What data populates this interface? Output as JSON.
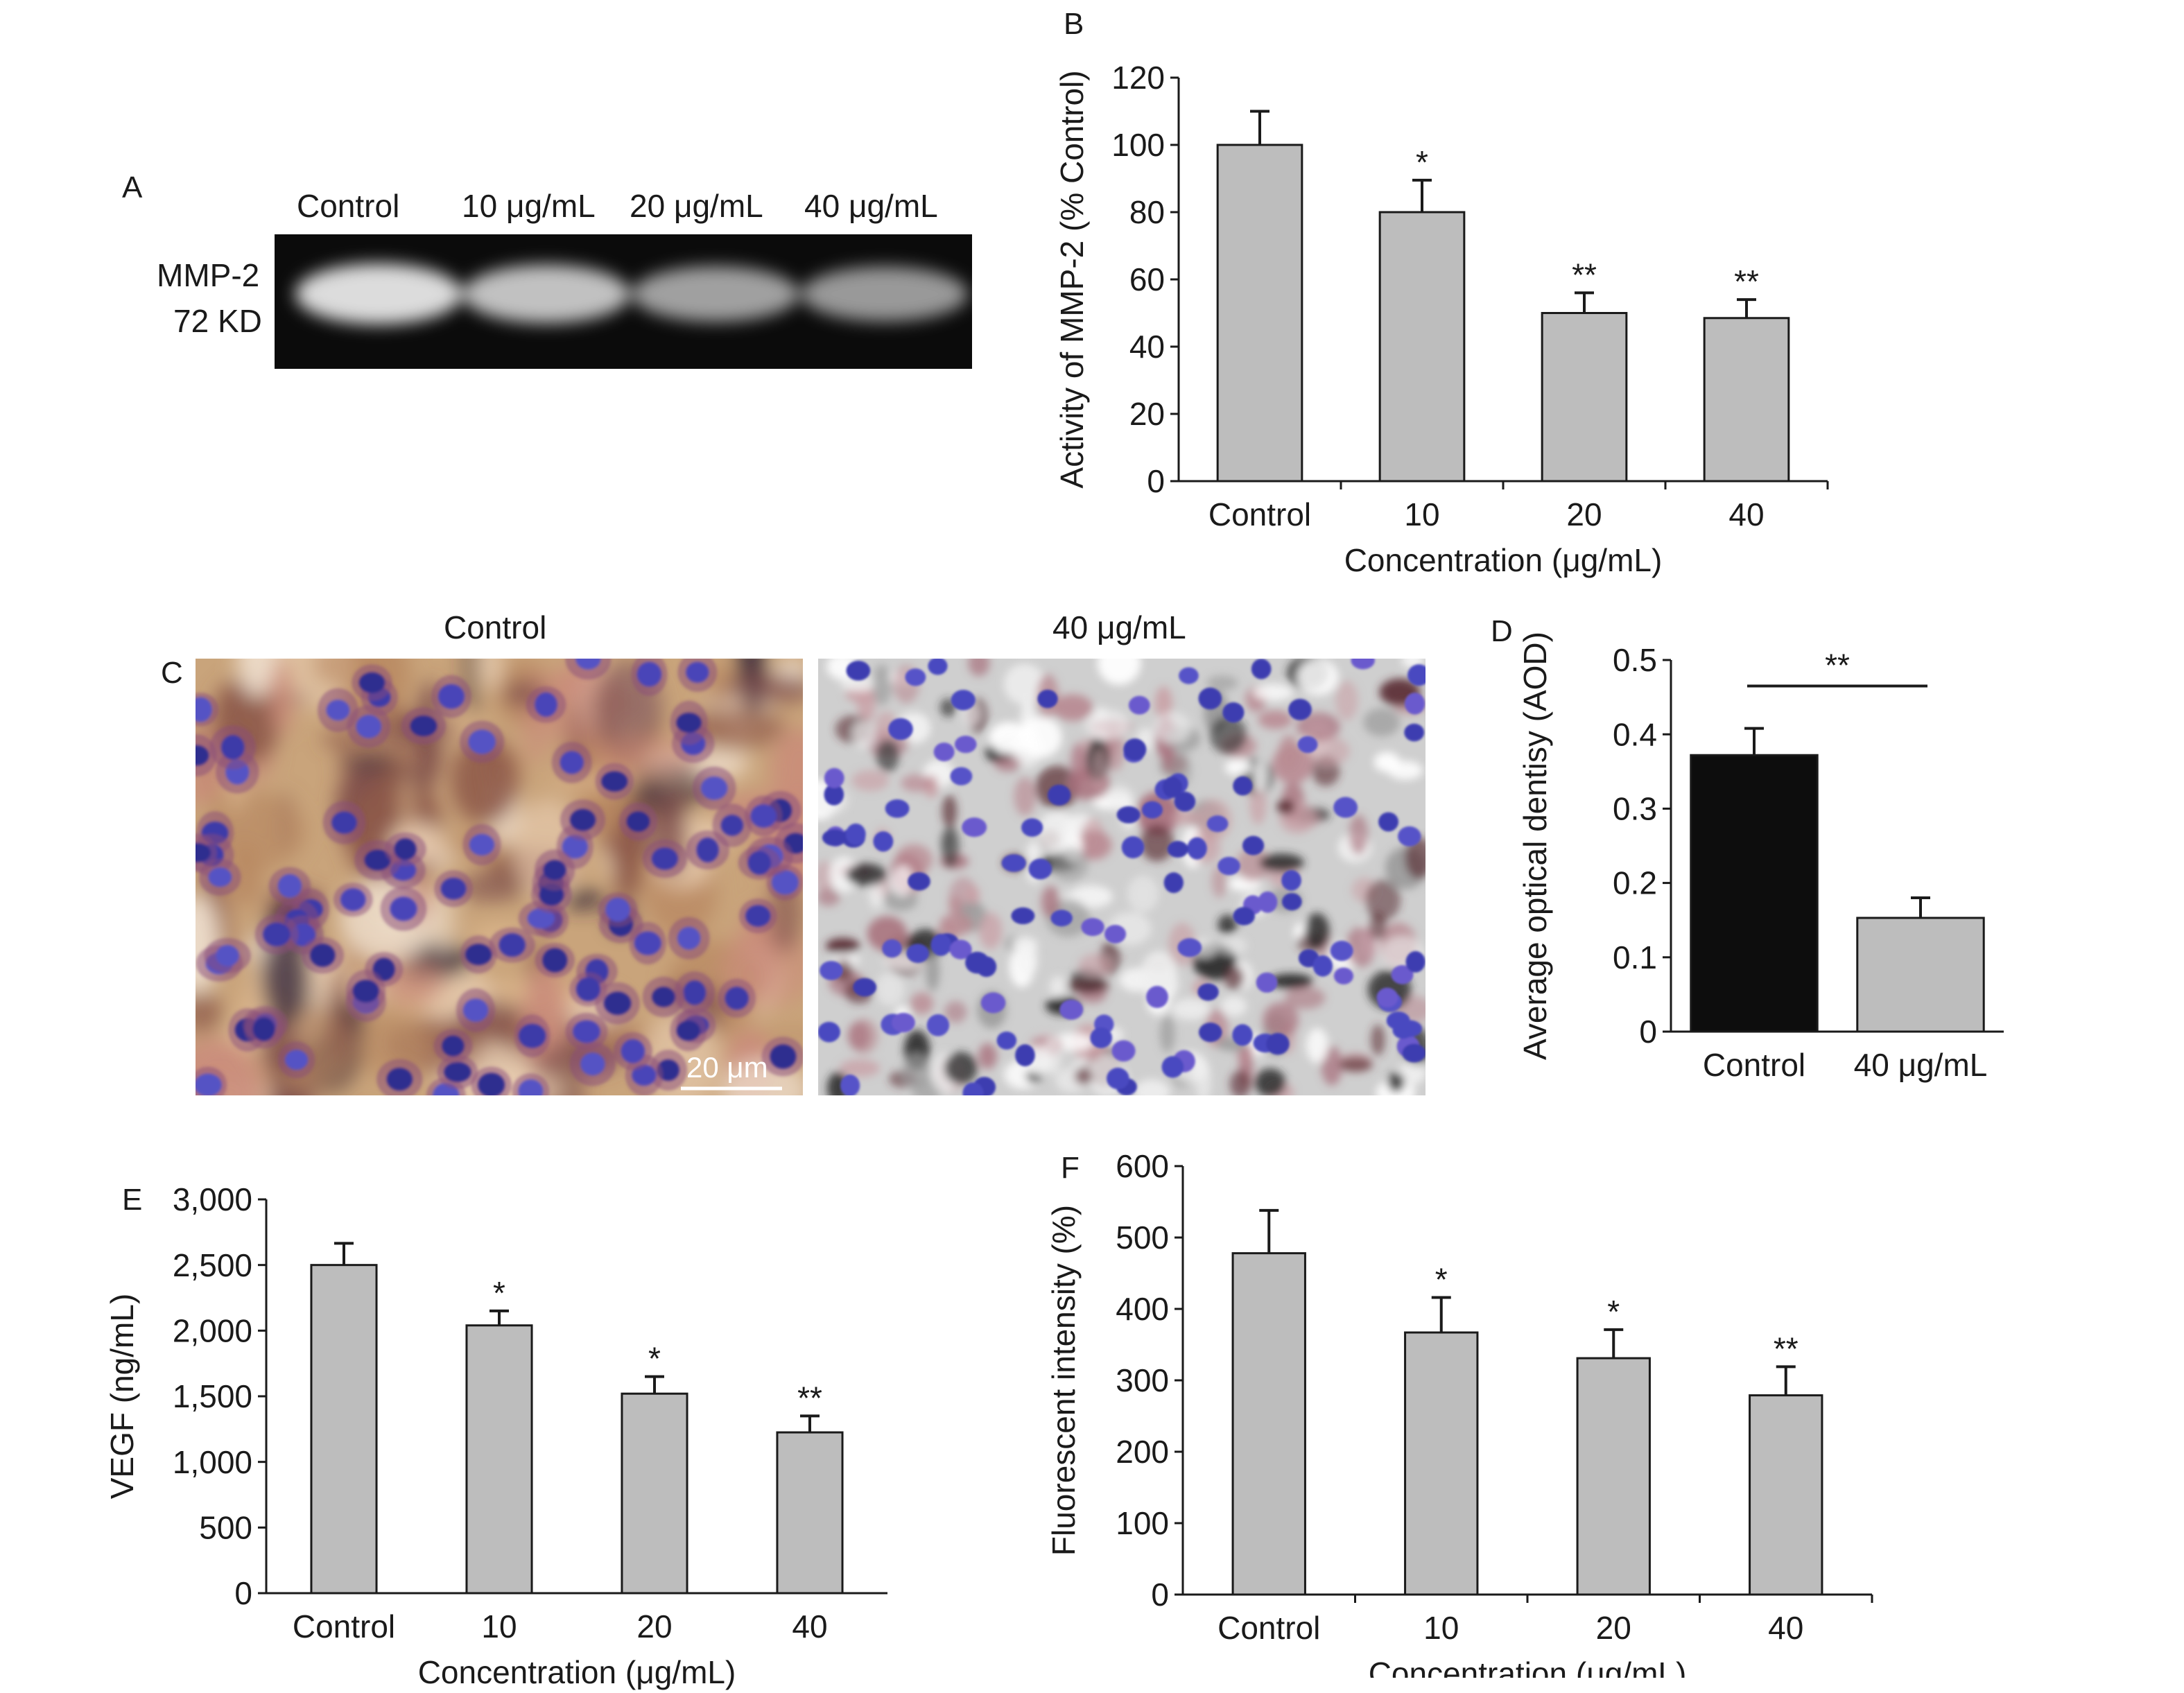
{
  "panel_letters": {
    "a": "A",
    "b": "B",
    "c": "C",
    "d": "D",
    "e": "E",
    "f": "F"
  },
  "gel": {
    "lane_labels": [
      "Control",
      "10 μg/mL",
      "20 μg/mL",
      "40 μg/mL"
    ],
    "band_label": "MMP-2",
    "size_label": "72 KD",
    "band_intensity": [
      1.0,
      0.82,
      0.6,
      0.55
    ]
  },
  "micrographs": {
    "left_title": "Control",
    "right_title": "40 μg/mL",
    "scale_bar": "20 μm"
  },
  "colors": {
    "bar_gray": "#bdbdbd",
    "bar_black": "#0d0d0d",
    "axis": "#1a1a1a"
  },
  "chart_data": [
    {
      "id": "B",
      "type": "bar",
      "categories": [
        "Control",
        "10",
        "20",
        "40"
      ],
      "values": [
        100,
        80,
        50,
        48.5
      ],
      "errors": [
        10,
        9.5,
        6,
        5.5
      ],
      "significance": [
        "",
        "*",
        "**",
        "**"
      ],
      "xlabel": "Concentration (μg/mL)",
      "ylabel": "Activity of MMP-2 (% Control)",
      "ylim": [
        0,
        120
      ],
      "yticks": [
        "0",
        "20",
        "40",
        "60",
        "80",
        "100",
        "120"
      ]
    },
    {
      "id": "D",
      "type": "bar",
      "categories": [
        "Control",
        "40 μg/mL"
      ],
      "values": [
        0.372,
        0.153
      ],
      "errors": [
        0.036,
        0.027
      ],
      "bracket_significance": "**",
      "xlabel": "",
      "ylabel": "Average optical dentisy (AOD)",
      "ylim": [
        0,
        0.5
      ],
      "yticks": [
        "0",
        "0.1",
        "0.2",
        "0.3",
        "0.4",
        "0.5"
      ]
    },
    {
      "id": "E",
      "type": "bar",
      "categories": [
        "Control",
        "10",
        "20",
        "40"
      ],
      "values": [
        2500,
        2040,
        1520,
        1225
      ],
      "errors": [
        165,
        110,
        130,
        125
      ],
      "significance": [
        "",
        "*",
        "*",
        "**"
      ],
      "xlabel": "Concentration (μg/mL)",
      "ylabel": "VEGF (ng/mL)",
      "ylim": [
        0,
        3000
      ],
      "yticks": [
        "0",
        "500",
        "1,000",
        "1,500",
        "2,000",
        "2,500",
        "3,000"
      ]
    },
    {
      "id": "F",
      "type": "bar",
      "categories": [
        "Control",
        "10",
        "20",
        "40"
      ],
      "values": [
        478,
        367,
        331,
        279
      ],
      "errors": [
        60,
        49,
        40,
        40
      ],
      "significance": [
        "",
        "*",
        "*",
        "**"
      ],
      "xlabel": "Concentration (μg/mL)",
      "ylabel": "Fluorescent intensity (%)",
      "ylim": [
        0,
        600
      ],
      "yticks": [
        "0",
        "100",
        "200",
        "300",
        "400",
        "500",
        "600"
      ]
    }
  ]
}
